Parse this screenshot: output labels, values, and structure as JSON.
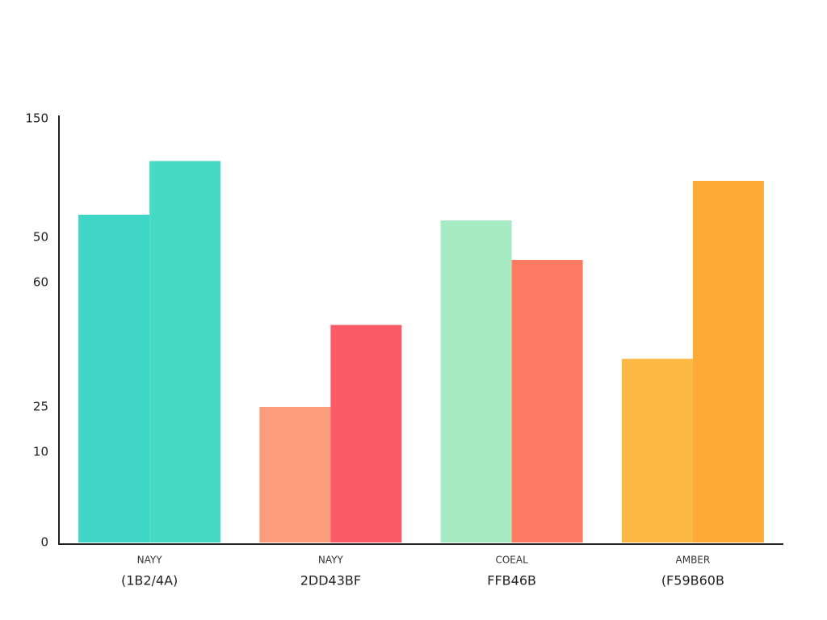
{
  "chart_data": {
    "type": "bar",
    "categories": [
      "NAYY",
      "NAYY",
      "COEAL",
      "AMBER"
    ],
    "sublabels": [
      "(1B2/4A)",
      "2DD43BF",
      "FFB46B",
      "(F59B60B"
    ],
    "series": [
      {
        "colors": [
          "#3fd6c6",
          "#fb9d7a",
          "#a6ebc3",
          "#fbb944"
        ],
        "values": [
          116,
          48,
          114,
          65
        ]
      },
      {
        "colors": [
          "#46d9c4",
          "#fb5a67",
          "#fe7a62",
          "#fdab36"
        ],
        "values": [
          135,
          77,
          100,
          128
        ]
      }
    ],
    "ylim": [
      0,
      150
    ],
    "yticks": [
      0,
      {
        "value": 32,
        "label": "10"
      },
      {
        "value": 48,
        "label": "25"
      },
      {
        "value": 92,
        "label": "60"
      },
      {
        "value": 108,
        "label": "50"
      },
      150
    ]
  }
}
